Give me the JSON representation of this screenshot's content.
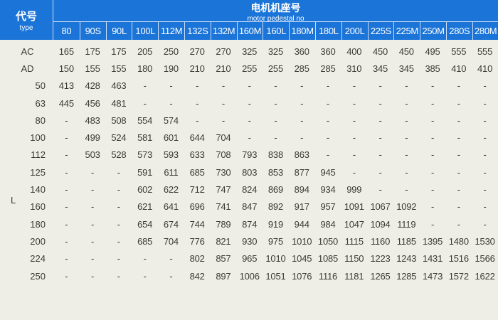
{
  "header": {
    "type_zh": "代号",
    "type_en": "type",
    "pedestal_zh": "电机机座号",
    "pedestal_en": "motor pedestal no",
    "columns": [
      "80",
      "90S",
      "90L",
      "100L",
      "112M",
      "132S",
      "132M",
      "160M",
      "160L",
      "180M",
      "180L",
      "200L",
      "225S",
      "225M",
      "250M",
      "280S",
      "280M"
    ]
  },
  "colors": {
    "header_bg": "#1b74d8",
    "body_bg": "#efeee6",
    "text": "#3a3a34"
  },
  "group_label": "L",
  "rows": [
    {
      "label": "AC",
      "values": [
        "165",
        "175",
        "175",
        "205",
        "250",
        "270",
        "270",
        "325",
        "325",
        "360",
        "360",
        "400",
        "450",
        "450",
        "495",
        "555",
        "555"
      ]
    },
    {
      "label": "AD",
      "values": [
        "150",
        "155",
        "155",
        "180",
        "190",
        "210",
        "210",
        "255",
        "255",
        "285",
        "285",
        "310",
        "345",
        "345",
        "385",
        "410",
        "410"
      ]
    },
    {
      "label": "50",
      "values": [
        "413",
        "428",
        "463",
        "-",
        "-",
        "-",
        "-",
        "-",
        "-",
        "-",
        "-",
        "-",
        "-",
        "-",
        "-",
        "-",
        "-"
      ]
    },
    {
      "label": "63",
      "values": [
        "445",
        "456",
        "481",
        "-",
        "-",
        "-",
        "-",
        "-",
        "-",
        "-",
        "-",
        "-",
        "-",
        "-",
        "-",
        "-",
        "-"
      ]
    },
    {
      "label": "80",
      "values": [
        "-",
        "483",
        "508",
        "554",
        "574",
        "-",
        "-",
        "-",
        "-",
        "-",
        "-",
        "-",
        "-",
        "-",
        "-",
        "-",
        "-"
      ]
    },
    {
      "label": "100",
      "values": [
        "-",
        "499",
        "524",
        "581",
        "601",
        "644",
        "704",
        "-",
        "-",
        "-",
        "-",
        "-",
        "-",
        "-",
        "-",
        "-",
        "-"
      ]
    },
    {
      "label": "112",
      "values": [
        "-",
        "503",
        "528",
        "573",
        "593",
        "633",
        "708",
        "793",
        "838",
        "863",
        "-",
        "-",
        "-",
        "-",
        "-",
        "-",
        "-"
      ]
    },
    {
      "label": "125",
      "values": [
        "-",
        "-",
        "-",
        "591",
        "611",
        "685",
        "730",
        "803",
        "853",
        "877",
        "945",
        "-",
        "-",
        "-",
        "-",
        "-",
        "-"
      ]
    },
    {
      "label": "140",
      "values": [
        "-",
        "-",
        "-",
        "602",
        "622",
        "712",
        "747",
        "824",
        "869",
        "894",
        "934",
        "999",
        "-",
        "-",
        "-",
        "-",
        "-"
      ]
    },
    {
      "label": "160",
      "values": [
        "-",
        "-",
        "-",
        "621",
        "641",
        "696",
        "741",
        "847",
        "892",
        "917",
        "957",
        "1091",
        "1067",
        "1092",
        "-",
        "-",
        "-"
      ]
    },
    {
      "label": "180",
      "values": [
        "-",
        "-",
        "-",
        "654",
        "674",
        "744",
        "789",
        "874",
        "919",
        "944",
        "984",
        "1047",
        "1094",
        "1119",
        "-",
        "-",
        "-"
      ]
    },
    {
      "label": "200",
      "values": [
        "-",
        "-",
        "-",
        "685",
        "704",
        "776",
        "821",
        "930",
        "975",
        "1010",
        "1050",
        "1115",
        "1160",
        "1185",
        "1395",
        "1480",
        "1530"
      ]
    },
    {
      "label": "224",
      "values": [
        "-",
        "-",
        "-",
        "-",
        "-",
        "802",
        "857",
        "965",
        "1010",
        "1045",
        "1085",
        "1150",
        "1223",
        "1243",
        "1431",
        "1516",
        "1566"
      ]
    },
    {
      "label": "250",
      "values": [
        "-",
        "-",
        "-",
        "-",
        "-",
        "842",
        "897",
        "1006",
        "1051",
        "1076",
        "1116",
        "1181",
        "1265",
        "1285",
        "1473",
        "1572",
        "1622"
      ]
    }
  ]
}
